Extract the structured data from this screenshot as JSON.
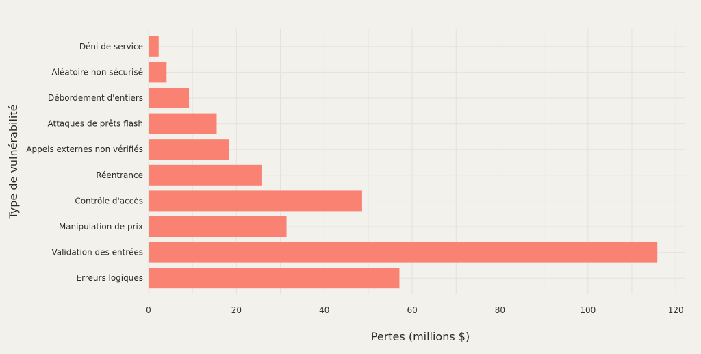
{
  "chart_data": {
    "type": "bar",
    "orientation": "horizontal",
    "categories": [
      "Déni de service",
      "Aléatoire non sécurisé",
      "Débordement d'entiers",
      "Attaques de prêts flash",
      "Appels externes non vérifiés",
      "Réentrance",
      "Contrôle d'accès",
      "Manipulation de prix",
      "Validation des entrées",
      "Erreurs logiques"
    ],
    "values": [
      2.3,
      4.1,
      9.2,
      15.5,
      18.3,
      25.7,
      48.6,
      31.4,
      115.8,
      57.1
    ],
    "title": "",
    "xlabel": "Pertes (millions $)",
    "ylabel": "Type de vulnérabilité",
    "xlim": [
      0,
      122
    ],
    "xticks": [
      0,
      20,
      40,
      60,
      80,
      100,
      120
    ],
    "grid": true,
    "bar_color": "#f98272",
    "background": "#f2f1ec",
    "grid_color": "#e3e2dc"
  }
}
